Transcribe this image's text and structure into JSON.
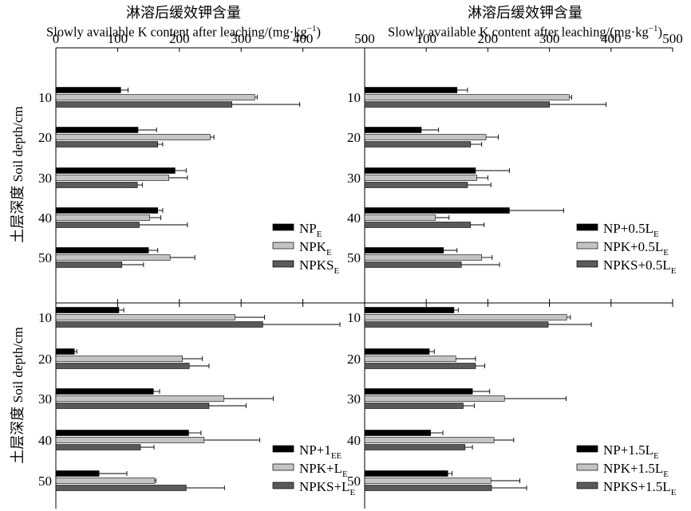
{
  "x_axis": {
    "label_zh": "淋溶后缓效钾含量",
    "label_en_pre": "Slowly available K content after leaching/(mg·kg",
    "label_en_sup": "−1",
    "label_en_post": ")"
  },
  "y_axis": {
    "label_zh": "土层深度",
    "label_en": "Soil depth/cm"
  },
  "chart_data": [
    {
      "type": "bar",
      "orientation": "horizontal",
      "position": "top-left",
      "categories": [
        "10",
        "20",
        "30",
        "40",
        "50"
      ],
      "xlim": [
        0,
        500
      ],
      "xticks": [
        0,
        100,
        200,
        300,
        400,
        500
      ],
      "legend": "bottom-right",
      "series": [
        {
          "name": "NP",
          "sub": "E",
          "color": "#000000",
          "values": [
            105,
            133,
            193,
            165,
            150
          ],
          "errors": [
            12,
            30,
            18,
            8,
            15
          ]
        },
        {
          "name": "NPK",
          "sub": "E",
          "color": "#c4c4c4",
          "values": [
            322,
            250,
            183,
            152,
            185
          ],
          "errors": [
            4,
            6,
            30,
            18,
            40
          ]
        },
        {
          "name": "NPKS",
          "sub": "E",
          "color": "#5a5a5a",
          "values": [
            285,
            165,
            132,
            135,
            107
          ],
          "errors": [
            110,
            8,
            8,
            78,
            35
          ]
        }
      ]
    },
    {
      "type": "bar",
      "orientation": "horizontal",
      "position": "top-right",
      "categories": [
        "10",
        "20",
        "30",
        "40",
        "50"
      ],
      "xlim": [
        0,
        500
      ],
      "xticks": [
        0,
        100,
        200,
        300,
        400,
        500
      ],
      "legend": "bottom-right",
      "series": [
        {
          "name": "NP+0.5L",
          "sub": "E",
          "color": "#000000",
          "values": [
            150,
            92,
            180,
            235,
            128
          ],
          "errors": [
            17,
            28,
            55,
            88,
            22
          ]
        },
        {
          "name": "NPK+0.5L",
          "sub": "E",
          "color": "#c4c4c4",
          "values": [
            332,
            197,
            182,
            115,
            190
          ],
          "errors": [
            4,
            20,
            18,
            22,
            17
          ]
        },
        {
          "name": "NPKS+0.5L",
          "sub": "E",
          "color": "#5a5a5a",
          "values": [
            300,
            172,
            167,
            172,
            157
          ],
          "errors": [
            92,
            18,
            38,
            22,
            62
          ]
        }
      ]
    },
    {
      "type": "bar",
      "orientation": "horizontal",
      "position": "bottom-left",
      "categories": [
        "10",
        "20",
        "30",
        "40",
        "50"
      ],
      "xlim": [
        0,
        500
      ],
      "xticks": [
        0,
        100,
        200,
        300,
        400,
        500
      ],
      "legend": "bottom-right",
      "series": [
        {
          "name": "NP+1",
          "sub": "EE",
          "color": "#000000",
          "values": [
            102,
            30,
            158,
            215,
            70
          ],
          "errors": [
            8,
            4,
            10,
            20,
            45
          ]
        },
        {
          "name": "NPK+L",
          "sub": "E",
          "color": "#c4c4c4",
          "values": [
            290,
            205,
            272,
            240,
            160
          ],
          "errors": [
            48,
            32,
            80,
            90,
            2
          ]
        },
        {
          "name": "NPKS+L",
          "sub": "E",
          "color": "#5a5a5a",
          "values": [
            335,
            216,
            248,
            137,
            211
          ],
          "errors": [
            125,
            32,
            60,
            22,
            62
          ]
        }
      ]
    },
    {
      "type": "bar",
      "orientation": "horizontal",
      "position": "bottom-right",
      "categories": [
        "10",
        "20",
        "30",
        "40",
        "50"
      ],
      "xlim": [
        0,
        500
      ],
      "xticks": [
        0,
        100,
        200,
        300,
        400,
        500
      ],
      "legend": "bottom-right",
      "series": [
        {
          "name": "NP+1.5L",
          "sub": "E",
          "color": "#000000",
          "values": [
            145,
            105,
            175,
            107,
            135
          ],
          "errors": [
            7,
            8,
            28,
            20,
            7
          ]
        },
        {
          "name": "NPK+1.5L",
          "sub": "E",
          "color": "#c4c4c4",
          "values": [
            328,
            148,
            227,
            210,
            205
          ],
          "errors": [
            6,
            32,
            100,
            32,
            47
          ]
        },
        {
          "name": "NPKS+1.5L",
          "sub": "E",
          "color": "#5a5a5a",
          "values": [
            298,
            180,
            160,
            163,
            206
          ],
          "errors": [
            70,
            15,
            18,
            12,
            57
          ]
        }
      ]
    }
  ]
}
